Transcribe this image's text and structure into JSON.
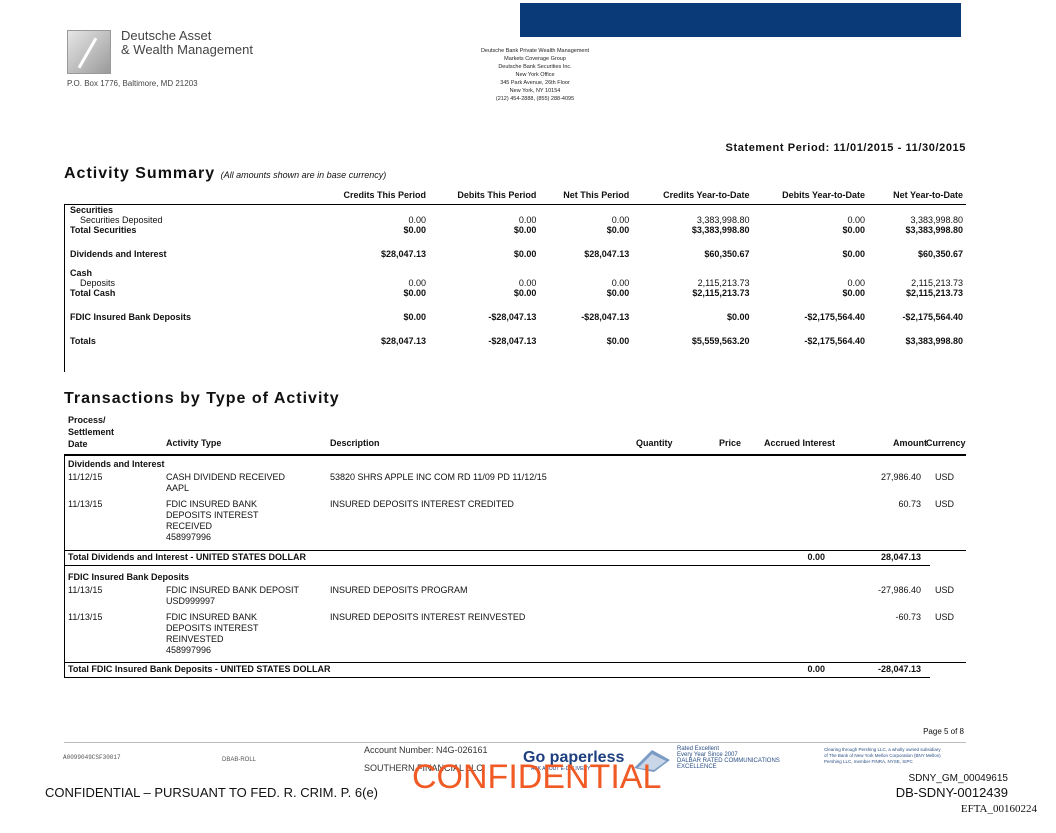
{
  "header": {
    "brand_line1": "Deutsche Asset",
    "brand_line2": "& Wealth Management",
    "pobox": "P.O. Box 1776, Baltimore, MD 21203",
    "office_lines": [
      "Deutsche Bank Private Wealth Management",
      "Markets Coverage Group",
      "Deutsche Bank Securities Inc.",
      "New York Office",
      "345 Park Avenue, 26th Floor",
      "New York, NY 10154",
      "(212) 454-2888, (855) 288-4095"
    ],
    "statement_period": "Statement Period: 11/01/2015 - 11/30/2015"
  },
  "summary": {
    "title": "Activity Summary",
    "note": "(All amounts shown are in base currency)",
    "columns": [
      "Credits This Period",
      "Debits This Period",
      "Net This Period",
      "Credits Year-to-Date",
      "Debits Year-to-Date",
      "Net Year-to-Date"
    ],
    "rows": [
      {
        "label": "Securities",
        "kind": "heading",
        "values": [
          "",
          "",
          "",
          "",
          "",
          ""
        ]
      },
      {
        "label": "Securities Deposited",
        "kind": "sub",
        "values": [
          "0.00",
          "0.00",
          "0.00",
          "3,383,998.80",
          "0.00",
          "3,383,998.80"
        ]
      },
      {
        "label": "Total Securities",
        "kind": "total",
        "values": [
          "$0.00",
          "$0.00",
          "$0.00",
          "$3,383,998.80",
          "$0.00",
          "$3,383,998.80"
        ]
      },
      {
        "label": "Dividends and Interest",
        "kind": "total",
        "values": [
          "$28,047.13",
          "$0.00",
          "$28,047.13",
          "$60,350.67",
          "$0.00",
          "$60,350.67"
        ]
      },
      {
        "label": "Cash",
        "kind": "heading",
        "values": [
          "",
          "",
          "",
          "",
          "",
          ""
        ]
      },
      {
        "label": "Deposits",
        "kind": "sub",
        "values": [
          "0.00",
          "0.00",
          "0.00",
          "2,115,213.73",
          "0.00",
          "2,115,213.73"
        ]
      },
      {
        "label": "Total Cash",
        "kind": "total",
        "values": [
          "$0.00",
          "$0.00",
          "$0.00",
          "$2,115,213.73",
          "$0.00",
          "$2,115,213.73"
        ]
      },
      {
        "label": "FDIC Insured Bank Deposits",
        "kind": "total",
        "values": [
          "$0.00",
          "-$28,047.13",
          "-$28,047.13",
          "$0.00",
          "-$2,175,564.40",
          "-$2,175,564.40"
        ]
      },
      {
        "label": "Totals",
        "kind": "total",
        "values": [
          "$28,047.13",
          "-$28,047.13",
          "$0.00",
          "$5,559,563.20",
          "-$2,175,564.40",
          "$3,383,998.80"
        ]
      }
    ]
  },
  "transactions": {
    "title": "Transactions by Type of Activity",
    "headers": {
      "date": [
        "Process/",
        "Settlement",
        "Date"
      ],
      "activity_type": "Activity Type",
      "description": "Description",
      "quantity": "Quantity",
      "price": "Price",
      "accrued_interest": "Accrued Interest",
      "amount": "Amount",
      "currency": "Currency"
    },
    "groups": [
      {
        "title": "Dividends and Interest",
        "rows": [
          {
            "date": "11/12/15",
            "activity": [
              "CASH DIVIDEND RECEIVED",
              "AAPL"
            ],
            "description": "53820 SHRS APPLE INC COM RD 11/09 PD 11/12/15",
            "amount": "27,986.40",
            "currency": "USD"
          },
          {
            "date": "11/13/15",
            "activity": [
              "FDIC INSURED BANK",
              "DEPOSITS INTEREST",
              "RECEIVED",
              "458997996"
            ],
            "description": "INSURED DEPOSITS INTEREST CREDITED",
            "amount": "60.73",
            "currency": "USD"
          }
        ],
        "total_label": "Total Dividends and Interest - UNITED STATES DOLLAR",
        "total_accrued": "0.00",
        "total_amount": "28,047.13"
      },
      {
        "title": "FDIC Insured Bank Deposits",
        "rows": [
          {
            "date": "11/13/15",
            "activity": [
              "FDIC INSURED BANK DEPOSIT",
              "USD999997"
            ],
            "description": "INSURED DEPOSITS PROGRAM",
            "amount": "-27,986.40",
            "currency": "USD"
          },
          {
            "date": "11/13/15",
            "activity": [
              "FDIC INSURED BANK",
              "DEPOSITS INTEREST",
              "REINVESTED",
              "458997996"
            ],
            "description": "INSURED DEPOSITS INTEREST REINVESTED",
            "amount": "-60.73",
            "currency": "USD"
          }
        ],
        "total_label": "Total FDIC Insured Bank Deposits - UNITED STATES DOLLAR",
        "total_accrued": "0.00",
        "total_amount": "-28,047.13"
      }
    ]
  },
  "footer": {
    "page": "Page 5 of 8",
    "code_left": "A0099049CSF30017",
    "code_mid": "DBAB-ROLL",
    "account": "Account Number: N4G-026161",
    "firm": "SOUTHERN FINANCIAL LLC",
    "go_paperless": "Go paperless",
    "ask_delivery": "ASK ABOUT E-DELIVERY",
    "dalbar": [
      "Rated Excellent",
      "Every Year Since 2007",
      "DALBAR RATED COMMUNICATIONS",
      "EXCELLENCE"
    ],
    "pershing": [
      "Clearing through Pershing LLC, a wholly owned subsidiary",
      "of The Bank of New York Mellon Corporation (BNY Mellon)",
      "Pershing LLC, member FINRA, NYSE, SIPC"
    ],
    "confidential_big": "CONFIDENTIAL",
    "confidential_left": "CONFIDENTIAL – PURSUANT TO FED. R. CRIM. P. 6(e)",
    "sdny1": "SDNY_GM_00049615",
    "sdny2": "DB-SDNY-0012439",
    "efta": "EFTA_00160224"
  }
}
